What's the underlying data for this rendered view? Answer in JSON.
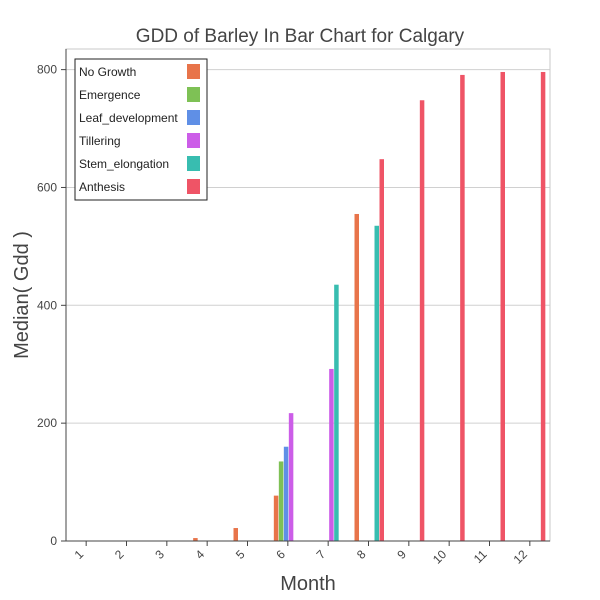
{
  "chart_data": {
    "type": "bar",
    "title": "GDD of Barley In Bar Chart for Calgary",
    "xlabel": "Month",
    "ylabel": "Median( Gdd )",
    "categories": [
      "1",
      "2",
      "3",
      "4",
      "5",
      "6",
      "7",
      "8",
      "9",
      "10",
      "11",
      "12"
    ],
    "ylim": [
      0,
      835
    ],
    "yticks": [
      0,
      200,
      400,
      600,
      800
    ],
    "grid": true,
    "legend_position": "top-left",
    "series": [
      {
        "name": "No Growth",
        "color": "#e8744a",
        "values": [
          0,
          0,
          0,
          5,
          22,
          77,
          0,
          555,
          0,
          0,
          0,
          0
        ]
      },
      {
        "name": "Emergence",
        "color": "#7ec155",
        "values": [
          0,
          0,
          0,
          0,
          0,
          135,
          0,
          0,
          0,
          0,
          0,
          0
        ]
      },
      {
        "name": "Leaf_development",
        "color": "#5f8fe6",
        "values": [
          0,
          0,
          0,
          0,
          0,
          160,
          0,
          0,
          0,
          0,
          0,
          0
        ]
      },
      {
        "name": "Tillering",
        "color": "#cc5de8",
        "values": [
          0,
          0,
          0,
          0,
          0,
          217,
          292,
          0,
          0,
          0,
          0,
          0
        ]
      },
      {
        "name": "Stem_elongation",
        "color": "#38bdb0",
        "values": [
          0,
          0,
          0,
          0,
          0,
          0,
          435,
          535,
          0,
          0,
          0,
          0
        ]
      },
      {
        "name": "Anthesis",
        "color": "#ef5466",
        "values": [
          0,
          0,
          0,
          0,
          0,
          0,
          0,
          648,
          748,
          791,
          796,
          796
        ]
      }
    ]
  }
}
